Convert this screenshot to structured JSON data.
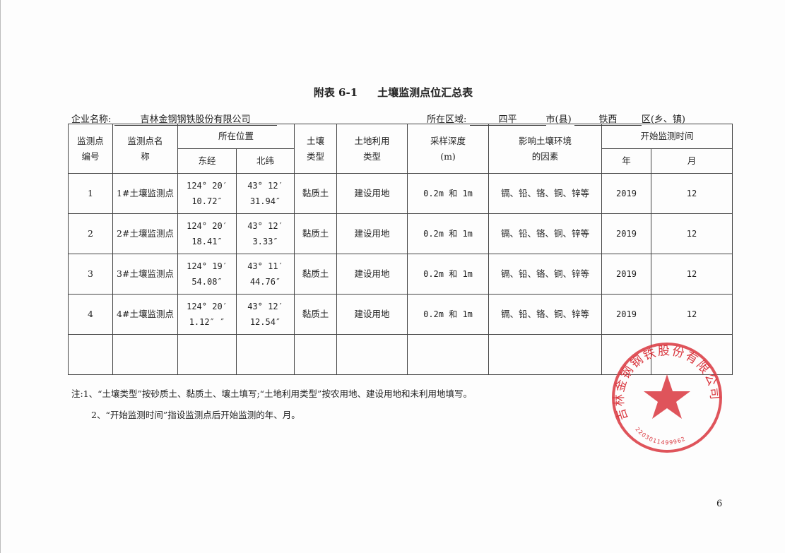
{
  "title": {
    "label": "附表 6-1",
    "name": "土壤监测点位汇总表"
  },
  "company": {
    "label": "企业名称:",
    "value": "吉林金钢钢铁股份有限公司"
  },
  "region": {
    "label": "所在区域:",
    "city": "四平",
    "city_suffix": "市(县)",
    "district": "铁西",
    "district_suffix": "区(乡、镇)"
  },
  "headers": {
    "id": "监测点编号",
    "name": "监测点名称",
    "location": "所在位置",
    "lon": "东经",
    "lat": "北纬",
    "soil": "土壤类型",
    "land": "土地利用类型",
    "depth": "采样深度(m)",
    "factors": "影响土壤环境的因素",
    "start": "开始监测时间",
    "year": "年",
    "month": "月"
  },
  "rows": [
    {
      "id": "1",
      "name": "1#土壤监测点",
      "lon1": "124° 20′",
      "lon2": "10.72″",
      "lat1": "43° 12′",
      "lat2": "31.94″",
      "soil": "黏质土",
      "land": "建设用地",
      "depth": "0.2m 和 1m",
      "factors": "镉、铅、铬、铜、锌等",
      "year": "2019",
      "month": "12"
    },
    {
      "id": "2",
      "name": "2#土壤监测点",
      "lon1": "124° 20′",
      "lon2": "18.41″",
      "lat1": "43° 12′",
      "lat2": "3.33″",
      "soil": "黏质土",
      "land": "建设用地",
      "depth": "0.2m 和 1m",
      "factors": "镉、铅、铬、铜、锌等",
      "year": "2019",
      "month": "12"
    },
    {
      "id": "3",
      "name": "3#土壤监测点",
      "lon1": "124° 19′",
      "lon2": "54.08″",
      "lat1": "43° 11′",
      "lat2": "44.76″",
      "soil": "黏质土",
      "land": "建设用地",
      "depth": "0.2m 和 1m",
      "factors": "镉、铅、铬、铜、锌等",
      "year": "2019",
      "month": "12"
    },
    {
      "id": "4",
      "name": "4#土壤监测点",
      "lon1": "124° 20′",
      "lon2": "1.12″ ″",
      "lat1": "43° 12′",
      "lat2": "12.54″",
      "soil": "黏质土",
      "land": "建设用地",
      "depth": "0.2m 和 1m",
      "factors": "镉、铅、铬、铜、锌等",
      "year": "2019",
      "month": "12"
    }
  ],
  "notes": [
    "注:1、“土壤类型”按砂质土、黏质土、壤土填写;“土地利用类型”按农用地、建设用地和未利用地填写。",
    "2、“开始监测时间”指设监测点后开始监测的年、月。"
  ],
  "page_number": "6",
  "stamp": {
    "text": "吉林金钢钢铁股份有限公司",
    "code": "2203011499962",
    "color": "#d9363e"
  }
}
